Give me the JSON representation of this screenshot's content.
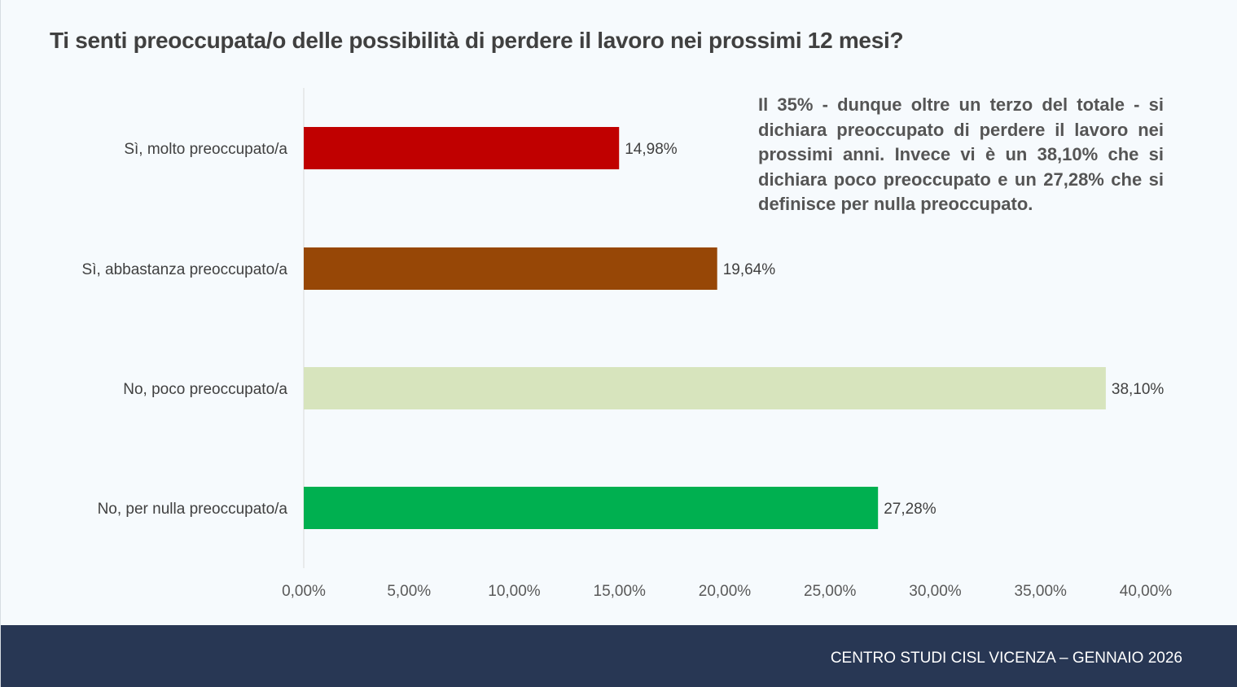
{
  "title": "Ti senti preoccupata/o delle possibilità di perdere il lavoro nei prossimi 12 mesi?",
  "callout": "Il 35% - dunque oltre un terzo del totale - si dichiara preoccupato di perdere il lavoro nei prossimi anni. Invece vi è un 38,10% che si dichiara poco preoccupato e un 27,28% che si definisce per nulla preoccupato.",
  "footer": "CENTRO STUDI CISL VICENZA – GENNAIO 2026",
  "chart_data": {
    "type": "bar",
    "orientation": "horizontal",
    "title": "Ti senti preoccupata/o delle possibilità di perdere il lavoro nei prossimi 12 mesi?",
    "categories": [
      "Sì, molto preoccupato/a",
      "Sì, abbastanza preoccupato/a",
      "No, poco preoccupato/a",
      "No, per nulla preoccupato/a"
    ],
    "values": [
      14.98,
      19.64,
      38.1,
      27.28
    ],
    "value_labels": [
      "14,98%",
      "19,64%",
      "38,10%",
      "27,28%"
    ],
    "colors": [
      "#c00000",
      "#974706",
      "#d7e4bd",
      "#00b050"
    ],
    "xlim": [
      0,
      40
    ],
    "x_ticks": [
      "0,00%",
      "5,00%",
      "10,00%",
      "15,00%",
      "20,00%",
      "25,00%",
      "30,00%",
      "35,00%",
      "40,00%"
    ],
    "grid": false
  }
}
